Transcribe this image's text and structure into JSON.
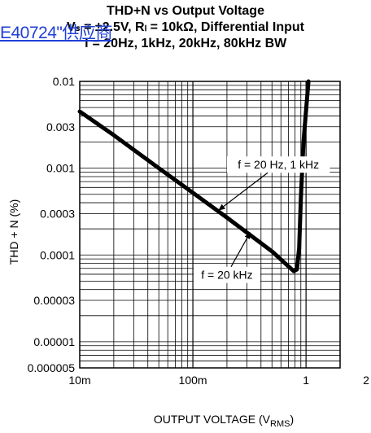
{
  "watermark": "E40724\"供应商",
  "chart_data": {
    "type": "line",
    "title_lines": [
      "THD+N vs Output Voltage",
      "Vₛ = ±2.5V, Rₗ = 10kΩ, Differential Input",
      "f = 20Hz, 1kHz, 20kHz, 80kHz BW"
    ],
    "xlabel": "OUTPUT VOLTAGE (V",
    "xlabel_sub": "RMS",
    "xlabel_end": ")",
    "ylabel": "THD + N (%)",
    "x_scale": "log",
    "y_scale": "log",
    "xlim": [
      0.01,
      2
    ],
    "ylim": [
      5e-06,
      0.01
    ],
    "x_ticks": [
      {
        "value": 0.01,
        "label": "10m"
      },
      {
        "value": 0.1,
        "label": "100m"
      },
      {
        "value": 1,
        "label": "1"
      },
      {
        "value": 2,
        "label": "2"
      }
    ],
    "y_ticks": [
      {
        "value": 0.01,
        "label": "0.01"
      },
      {
        "value": 0.003,
        "label": "0.003"
      },
      {
        "value": 0.001,
        "label": "0.001"
      },
      {
        "value": 0.0003,
        "label": "0.0003"
      },
      {
        "value": 0.0001,
        "label": "0.0001"
      },
      {
        "value": 3e-05,
        "label": "0.00003"
      },
      {
        "value": 1e-05,
        "label": "0.00001"
      },
      {
        "value": 5e-06,
        "label": "0.000005"
      }
    ],
    "grid": true,
    "series": [
      {
        "points": [
          [
            0.01,
            0.0045
          ],
          [
            0.02,
            0.0024
          ],
          [
            0.05,
            0.001
          ],
          [
            0.1,
            0.00052
          ],
          [
            0.2,
            0.00027
          ],
          [
            0.5,
            0.00011
          ],
          [
            0.78,
            6.5e-05
          ],
          [
            0.83,
            6.8e-05
          ],
          [
            0.87,
            0.00012
          ],
          [
            0.9,
            0.00045
          ],
          [
            0.95,
            0.002
          ],
          [
            1.05,
            0.01
          ]
        ]
      }
    ],
    "annotations": [
      {
        "text": "f = 20 Hz, 1 kHz",
        "label_at": [
          0.57,
          0.0011
        ],
        "arrow_to": [
          0.17,
          0.00033
        ]
      },
      {
        "text": "f = 20 kHz",
        "label_at": [
          0.2,
          5.9e-05
        ],
        "arrow_to": [
          0.32,
          0.00018
        ]
      }
    ]
  }
}
